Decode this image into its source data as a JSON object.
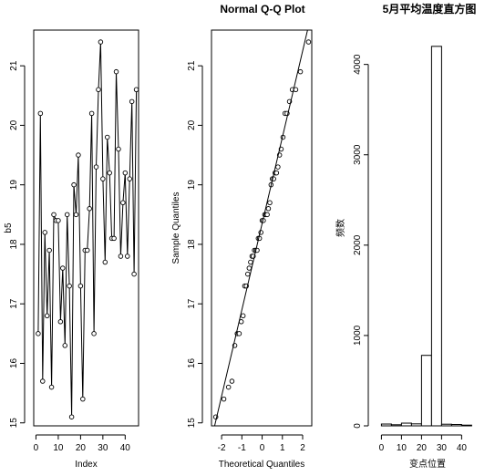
{
  "chart_data": [
    {
      "type": "line",
      "title": "",
      "xlabel": "Index",
      "ylabel": "b5",
      "xlim": [
        -1,
        46
      ],
      "ylim": [
        14.95,
        21.6
      ],
      "xticks": [
        "0",
        "10",
        "20",
        "30",
        "40"
      ],
      "yticks": [
        "15",
        "16",
        "17",
        "18",
        "19",
        "20",
        "21"
      ],
      "x": [
        1,
        2,
        3,
        4,
        5,
        6,
        7,
        8,
        9,
        10,
        11,
        12,
        13,
        14,
        15,
        16,
        17,
        18,
        19,
        20,
        21,
        22,
        23,
        24,
        25,
        26,
        27,
        28,
        29,
        30,
        31,
        32,
        33,
        34,
        35,
        36,
        37,
        38,
        39,
        40,
        41,
        42,
        43,
        44,
        45
      ],
      "values": [
        16.5,
        20.2,
        15.7,
        18.2,
        16.8,
        17.9,
        15.6,
        18.5,
        18.4,
        18.4,
        16.7,
        17.6,
        16.3,
        18.5,
        17.3,
        15.1,
        19.0,
        18.5,
        19.5,
        17.3,
        15.4,
        17.9,
        17.9,
        18.6,
        20.2,
        16.5,
        19.3,
        20.6,
        21.4,
        19.1,
        17.7,
        19.8,
        19.2,
        18.1,
        18.1,
        20.9,
        19.6,
        17.8,
        18.7,
        19.2,
        17.8,
        19.1,
        20.4,
        17.5,
        20.6
      ]
    },
    {
      "type": "scatter",
      "title": "Normal Q-Q Plot",
      "xlabel": "Theoretical Quantiles",
      "ylabel": "Sample Quantiles",
      "xlim": [
        -2.5,
        2.45
      ],
      "ylim": [
        14.95,
        21.6
      ],
      "xticks": [
        "-2",
        "-1",
        "0",
        "1",
        "2"
      ],
      "yticks": [
        "15",
        "16",
        "17",
        "18",
        "19",
        "20",
        "21"
      ],
      "x": [
        -2.29,
        -1.89,
        -1.66,
        -1.49,
        -1.35,
        -1.23,
        -1.13,
        -1.03,
        -0.94,
        -0.86,
        -0.78,
        -0.71,
        -0.64,
        -0.57,
        -0.5,
        -0.44,
        -0.38,
        -0.31,
        -0.25,
        -0.19,
        -0.13,
        -0.06,
        0.0,
        0.06,
        0.13,
        0.19,
        0.25,
        0.31,
        0.38,
        0.44,
        0.5,
        0.57,
        0.64,
        0.71,
        0.78,
        0.86,
        0.94,
        1.03,
        1.13,
        1.23,
        1.35,
        1.49,
        1.66,
        1.89,
        2.29
      ],
      "values": [
        15.1,
        15.4,
        15.6,
        15.7,
        16.3,
        16.5,
        16.5,
        16.7,
        16.8,
        17.3,
        17.3,
        17.5,
        17.6,
        17.7,
        17.8,
        17.8,
        17.9,
        17.9,
        17.9,
        18.1,
        18.1,
        18.2,
        18.4,
        18.4,
        18.5,
        18.5,
        18.5,
        18.6,
        18.7,
        19.0,
        19.1,
        19.1,
        19.2,
        19.2,
        19.3,
        19.5,
        19.6,
        19.8,
        20.2,
        20.2,
        20.4,
        20.6,
        20.6,
        20.9,
        21.4
      ],
      "reference_line": {
        "intercept": 18.35,
        "slope": 1.45
      }
    },
    {
      "type": "bar",
      "title": "5月平均温度直方图",
      "xlabel": "变点位置",
      "ylabel": "频数",
      "xlim": [
        -2,
        48
      ],
      "ylim": [
        0,
        4380
      ],
      "xticks": [
        "0",
        "10",
        "20",
        "30",
        "40"
      ],
      "yticks": [
        "0",
        "1000",
        "2000",
        "3000",
        "4000"
      ],
      "bin_width": 5,
      "bin_starts": [
        0,
        5,
        10,
        15,
        20,
        25,
        30,
        35,
        40
      ],
      "values": [
        20,
        12,
        30,
        22,
        780,
        4200,
        18,
        15,
        8
      ]
    }
  ]
}
